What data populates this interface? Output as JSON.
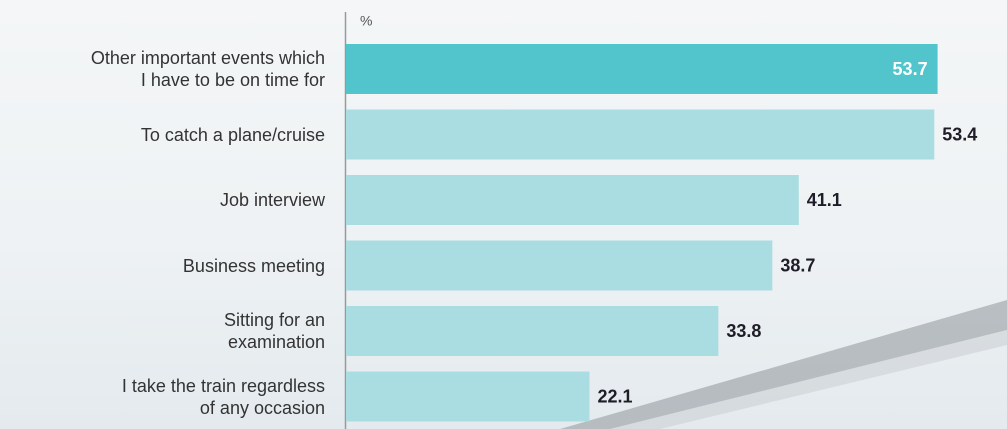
{
  "chart_data": {
    "type": "bar",
    "orientation": "horizontal",
    "unit_label": "%",
    "categories": [
      "Other important events which\nI have to be on time for",
      "To catch a plane/cruise ",
      "Job interview",
      "Business meeting",
      "Sitting for an\nexamination",
      "I take the train regardless\nof any occasion"
    ],
    "values": [
      53.7,
      53.4,
      41.1,
      38.7,
      33.8,
      22.1
    ],
    "colors": [
      "#52c4cc",
      "#aadde1",
      "#aadde1",
      "#aadde1",
      "#aadde1",
      "#aadde1"
    ],
    "value_label_colors": [
      "#ffffff",
      "#1e1e28",
      "#1e1e28",
      "#1e1e28",
      "#1e1e28",
      "#1e1e28"
    ],
    "xlim": [
      0,
      60
    ]
  }
}
